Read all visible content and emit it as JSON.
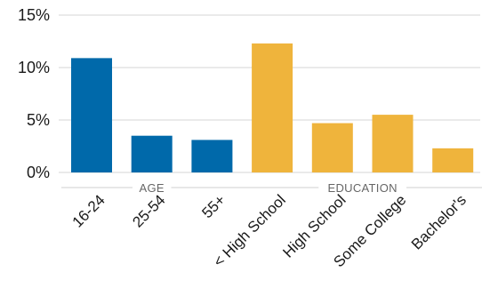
{
  "chart_data": {
    "type": "bar",
    "ylim": [
      0,
      15
    ],
    "yticks": [
      0,
      5,
      10,
      15
    ],
    "ytick_format": "percent",
    "grid": true,
    "legend": "none",
    "groups": [
      {
        "label": "AGE",
        "color": "#0069aa",
        "categories": [
          "16-24",
          "25-54",
          "55+"
        ],
        "values": [
          10.9,
          3.5,
          3.1
        ]
      },
      {
        "label": "EDUCATION",
        "color": "#efb43c",
        "categories": [
          "< High School",
          "High School",
          "Some College",
          "Bachelor's"
        ],
        "values": [
          12.3,
          4.7,
          5.5,
          2.3
        ]
      }
    ]
  }
}
